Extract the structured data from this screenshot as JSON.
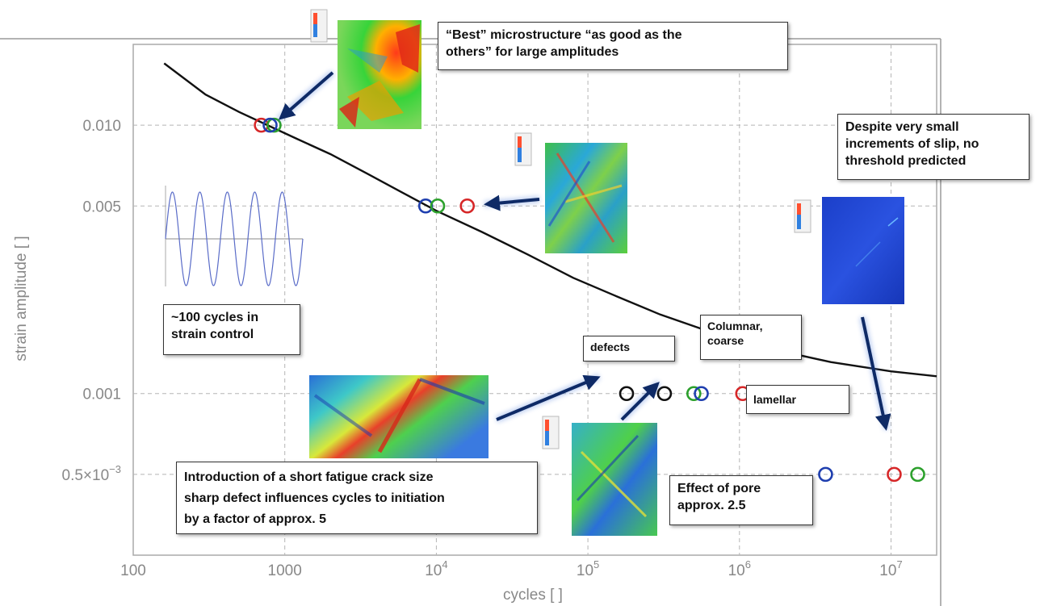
{
  "chart_data": {
    "type": "scatter",
    "title": "",
    "xlabel": "cycles [ ]",
    "ylabel": "strain amplitude [ ]",
    "xscale": "log",
    "yscale": "log",
    "xlim": [
      100,
      20000000
    ],
    "ylim": [
      0.00025,
      0.02
    ],
    "grid": true,
    "x_ticks": [
      {
        "value": 100,
        "label": "100"
      },
      {
        "value": 1000,
        "label": "1000"
      },
      {
        "value": 10000,
        "mant": "10",
        "exp": "4"
      },
      {
        "value": 100000,
        "mant": "10",
        "exp": "5"
      },
      {
        "value": 1000000,
        "mant": "10",
        "exp": "6"
      },
      {
        "value": 10000000,
        "mant": "10",
        "exp": "7"
      }
    ],
    "y_ticks": [
      {
        "value": 0.01,
        "label": "0.010"
      },
      {
        "value": 0.005,
        "label": "0.005"
      },
      {
        "value": 0.001,
        "label": "0.001"
      },
      {
        "value": 0.0005,
        "mant": "0.5×10",
        "exp": "−3"
      }
    ],
    "curve": [
      [
        160,
        0.017
      ],
      [
        300,
        0.013
      ],
      [
        500,
        0.0112
      ],
      [
        800,
        0.0099
      ],
      [
        1200,
        0.0089
      ],
      [
        2000,
        0.0078
      ],
      [
        3500,
        0.0066
      ],
      [
        6000,
        0.0056
      ],
      [
        10000,
        0.0048
      ],
      [
        20000,
        0.004
      ],
      [
        40000,
        0.0033
      ],
      [
        80000,
        0.0027
      ],
      [
        150000,
        0.00232
      ],
      [
        300000,
        0.00197
      ],
      [
        700000,
        0.00167
      ],
      [
        1500000,
        0.00148
      ],
      [
        4000000,
        0.00131
      ],
      [
        10000000,
        0.00121
      ],
      [
        20000000,
        0.00116
      ]
    ],
    "points": [
      {
        "x": 700,
        "y": 0.01,
        "color": "#d62728"
      },
      {
        "x": 850,
        "y": 0.01,
        "color": "#2ca02c"
      },
      {
        "x": 800,
        "y": 0.01,
        "color": "#1f3faf"
      },
      {
        "x": 8500,
        "y": 0.005,
        "color": "#1f3faf"
      },
      {
        "x": 10200,
        "y": 0.005,
        "color": "#2ca02c"
      },
      {
        "x": 16000,
        "y": 0.005,
        "color": "#d62728"
      },
      {
        "x": 180000,
        "y": 0.001,
        "color": "#111111"
      },
      {
        "x": 320000,
        "y": 0.001,
        "color": "#111111"
      },
      {
        "x": 500000,
        "y": 0.001,
        "color": "#2ca02c"
      },
      {
        "x": 560000,
        "y": 0.001,
        "color": "#1f3faf"
      },
      {
        "x": 1050000,
        "y": 0.001,
        "color": "#d62728"
      },
      {
        "x": 3700000,
        "y": 0.0005,
        "color": "#1f3faf"
      },
      {
        "x": 10500000,
        "y": 0.0005,
        "color": "#d62728"
      },
      {
        "x": 15000000,
        "y": 0.0005,
        "color": "#2ca02c"
      }
    ]
  },
  "annotations": {
    "best_line1": "“Best” microstructure “as good as the",
    "best_line2": "others” for large amplitudes",
    "despite_line1": "Despite very small",
    "despite_line2": "increments of slip, no",
    "despite_line3": "threshold predicted",
    "cycles_line1": "~100 cycles in",
    "cycles_line2": "strain control",
    "defects": "defects",
    "columnar_line1": "Columnar,",
    "columnar_line2": "coarse",
    "lamellar": "lamellar",
    "intro_line1": "Introduction of a short fatigue crack size",
    "intro_line2": "sharp defect influences cycles to initiation",
    "intro_line3": "by a factor of approx. 5",
    "pore_line1": "Effect of pore",
    "pore_line2": "approx. 2.5"
  },
  "colors": {
    "series_red": "#d62728",
    "series_green": "#2ca02c",
    "series_blue": "#1f3faf",
    "series_black": "#111111",
    "arrow": "#0e2a66"
  }
}
